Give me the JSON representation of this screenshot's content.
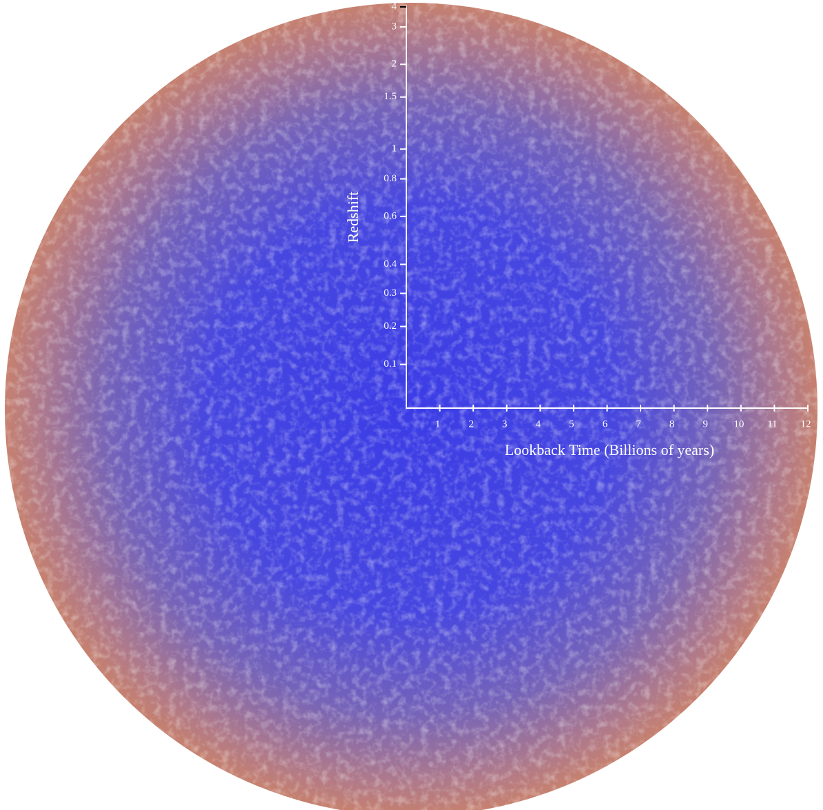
{
  "chart_data": {
    "type": "cosmic-axes",
    "x_label": "Lookback Time (Billions of years)",
    "y_label": "Redshift",
    "xlim": [
      0,
      12
    ],
    "xticks": [
      1,
      2,
      3,
      4,
      5,
      6,
      7,
      8,
      9,
      10,
      11,
      12
    ],
    "ylim": [
      0,
      4
    ],
    "yticks": [
      0.1,
      0.2,
      0.3,
      0.4,
      0.6,
      0.8,
      1,
      1.5,
      2,
      3,
      4
    ],
    "y_scale": "lookback-time"
  }
}
